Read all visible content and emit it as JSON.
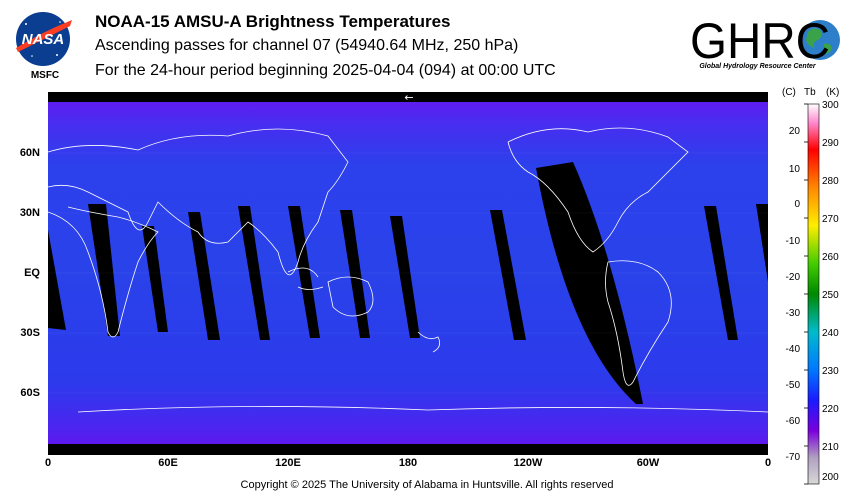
{
  "header": {
    "title": "NOAA-15 AMSU-A Brightness Temperatures",
    "subtitle": "Ascending passes for channel 07 (54940.64 MHz, 250 hPa)",
    "period": "For the 24-hour period beginning 2025-04-04 (094) at 00:00 UTC"
  },
  "logos": {
    "nasa": {
      "label": "NASA",
      "caption": "MSFC"
    },
    "ghrc": {
      "label": "GHRC",
      "caption": "Global Hydrology Resource Center"
    }
  },
  "map": {
    "lat_labels": [
      "60N",
      "30N",
      "EQ",
      "30S",
      "60S"
    ],
    "lon_labels": [
      "0",
      "60E",
      "120E",
      "180",
      "120W",
      "60W",
      "0"
    ],
    "arrow_glyph": "←",
    "colors": {
      "ocean": "#2a3ee8",
      "polar": "#5e18ee",
      "gap": "#000000",
      "coast": "#ffffff"
    }
  },
  "colorbar": {
    "unit_c": "(C)",
    "unit_tb": "Tb",
    "unit_k": "(K)",
    "kelvin_ticks": [
      "300",
      "290",
      "280",
      "270",
      "260",
      "250",
      "240",
      "230",
      "220",
      "210",
      "200"
    ],
    "celsius_ticks": [
      "20",
      "10",
      "0",
      "-10",
      "-20",
      "-30",
      "-40",
      "-50",
      "-60",
      "-70"
    ]
  },
  "footer": "Copyright © 2025 The University of Alabama in Huntsville.  All rights reserved"
}
